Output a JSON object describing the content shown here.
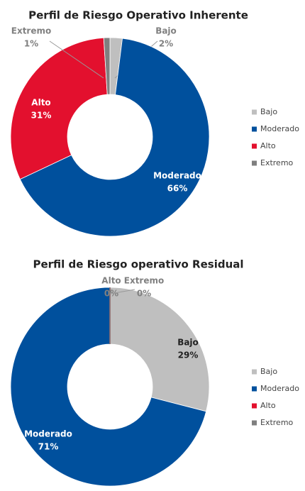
{
  "chart_data": [
    {
      "type": "donut",
      "title": "Perfil de Riesgo Operativo Inherente",
      "categories": [
        "Bajo",
        "Moderado",
        "Alto",
        "Extremo"
      ],
      "values": [
        2,
        66,
        31,
        1
      ],
      "value_labels": [
        "2%",
        "66%",
        "31%",
        "1%"
      ],
      "colors": [
        "#bfbfbf",
        "#00509d",
        "#e3102e",
        "#7f7f7f"
      ],
      "legend": "right"
    },
    {
      "type": "donut",
      "title": "Perfil de Riesgo operativo Residual",
      "categories": [
        "Bajo",
        "Moderado",
        "Alto",
        "Extremo"
      ],
      "values": [
        29,
        71,
        0,
        0
      ],
      "value_labels": [
        "29%",
        "71%",
        "0%",
        "0%"
      ],
      "colors": [
        "#bfbfbf",
        "#00509d",
        "#e3102e",
        "#7f7f7f"
      ],
      "legend": "right"
    }
  ]
}
